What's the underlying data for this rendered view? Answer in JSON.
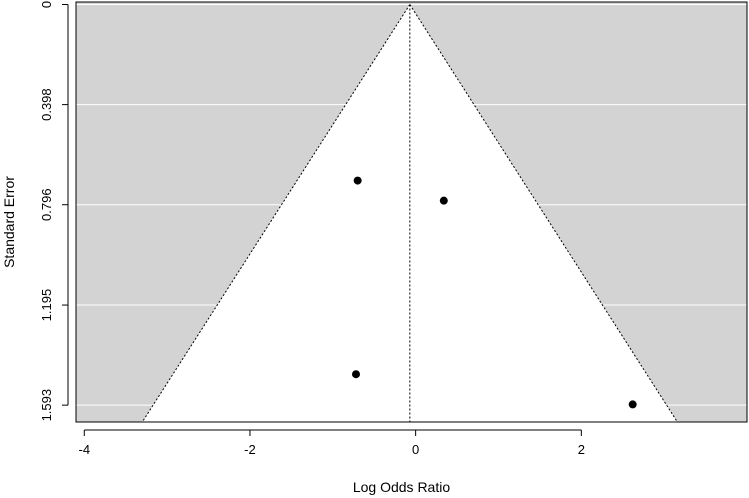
{
  "chart_data": {
    "type": "scatter",
    "plot_kind": "funnel",
    "xlabel": "Log Odds Ratio",
    "ylabel": "Standard Error",
    "xlim": [
      -4.1,
      4.0
    ],
    "ylim": [
      1.66,
      -0.01
    ],
    "y_inverted": true,
    "xticks": [
      -4,
      -2,
      0,
      2
    ],
    "xtick_labels": [
      "-4",
      "-2",
      "0",
      "2"
    ],
    "yticks": [
      0,
      0.398,
      0.796,
      1.195,
      1.593
    ],
    "ytick_labels": [
      "0",
      "0.398",
      "0.796",
      "1.195",
      "1.593"
    ],
    "grid": true,
    "legend": "none",
    "center_line_x": -0.07,
    "funnel": {
      "apex_x": -0.07,
      "apex_y": 0,
      "base_y": 1.66,
      "base_left_x": -3.3,
      "base_right_x": 3.16
    },
    "points": [
      {
        "x": -0.7,
        "y": 0.7
      },
      {
        "x": 0.34,
        "y": 0.78
      },
      {
        "x": -0.72,
        "y": 1.47
      },
      {
        "x": 2.62,
        "y": 1.59
      }
    ],
    "colors": {
      "panel_background": "#d3d3d3",
      "funnel_region": "#ffffff",
      "grid": "#ffffff",
      "points": "#000000",
      "lines": "#000000"
    }
  }
}
